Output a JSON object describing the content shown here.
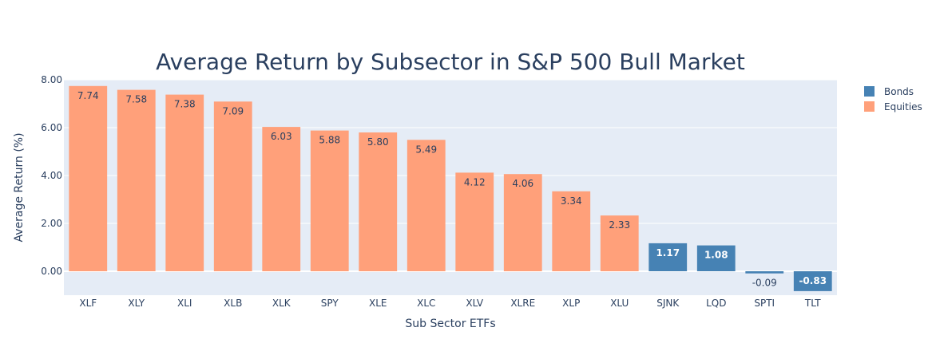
{
  "chart_data": {
    "type": "bar",
    "title": "Average Return by Subsector in S&P 500 Bull Market",
    "xlabel": "Sub Sector ETFs",
    "ylabel": "Average Return (%)",
    "ylim": [
      -1.0,
      8.0
    ],
    "yticks": [
      "0.00",
      "2.00",
      "4.00",
      "6.00",
      "8.00"
    ],
    "grid": true,
    "legend_position": "top-right",
    "categories": [
      "XLF",
      "XLY",
      "XLI",
      "XLB",
      "XLK",
      "SPY",
      "XLE",
      "XLC",
      "XLV",
      "XLRE",
      "XLP",
      "XLU",
      "SJNK",
      "LQD",
      "SPTI",
      "TLT"
    ],
    "values": [
      7.74,
      7.58,
      7.38,
      7.09,
      6.03,
      5.88,
      5.8,
      5.49,
      4.12,
      4.06,
      3.34,
      2.33,
      1.17,
      1.08,
      -0.09,
      -0.83
    ],
    "value_labels": [
      "7.74",
      "7.58",
      "7.38",
      "7.09",
      "6.03",
      "5.88",
      "5.80",
      "5.49",
      "4.12",
      "4.06",
      "3.34",
      "2.33",
      "1.17",
      "1.08",
      "-0.09",
      "-0.83"
    ],
    "groups": [
      "Equities",
      "Equities",
      "Equities",
      "Equities",
      "Equities",
      "Equities",
      "Equities",
      "Equities",
      "Equities",
      "Equities",
      "Equities",
      "Equities",
      "Bonds",
      "Bonds",
      "Bonds",
      "Bonds"
    ],
    "series": [
      {
        "name": "Bonds",
        "color": "#4682b4"
      },
      {
        "name": "Equities",
        "color": "#ffa07a"
      }
    ],
    "colors": {
      "plot_background": "#e5ecf6",
      "grid": "#ffffff",
      "text": "#2a3f5f",
      "label_on_equities": "#2a3f5f",
      "label_on_bonds": "#ffffff"
    }
  }
}
